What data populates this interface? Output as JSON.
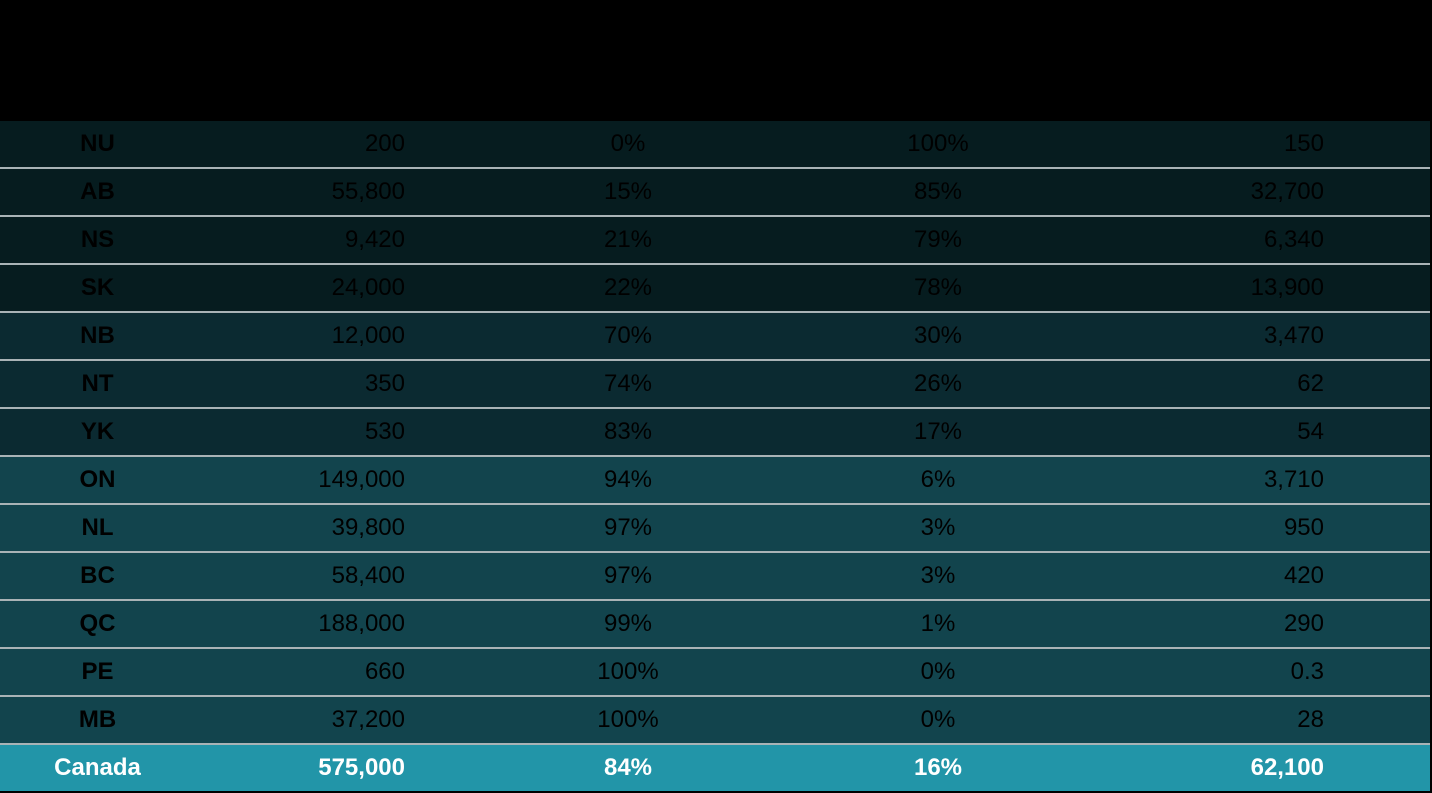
{
  "colors": {
    "background": "#000000",
    "row_divider": "#a9b3b6",
    "band_darkest": "#061c1f",
    "band_dark": "#0b2a31",
    "band_medium": "#12444d",
    "band_total": "#2295a8"
  },
  "chart_data": {
    "type": "table",
    "columns": [
      "",
      "",
      "",
      "",
      ""
    ],
    "rows": [
      {
        "prov": "NU",
        "total": "200",
        "share_a": "0%",
        "share_b": "100%",
        "value": "150",
        "band": "band_darkest"
      },
      {
        "prov": "AB",
        "total": "55,800",
        "share_a": "15%",
        "share_b": "85%",
        "value": "32,700",
        "band": "band_darkest"
      },
      {
        "prov": "NS",
        "total": "9,420",
        "share_a": "21%",
        "share_b": "79%",
        "value": "6,340",
        "band": "band_darkest"
      },
      {
        "prov": "SK",
        "total": "24,000",
        "share_a": "22%",
        "share_b": "78%",
        "value": "13,900",
        "band": "band_darkest"
      },
      {
        "prov": "NB",
        "total": "12,000",
        "share_a": "70%",
        "share_b": "30%",
        "value": "3,470",
        "band": "band_dark"
      },
      {
        "prov": "NT",
        "total": "350",
        "share_a": "74%",
        "share_b": "26%",
        "value": "62",
        "band": "band_dark"
      },
      {
        "prov": "YK",
        "total": "530",
        "share_a": "83%",
        "share_b": "17%",
        "value": "54",
        "band": "band_dark"
      },
      {
        "prov": "ON",
        "total": "149,000",
        "share_a": "94%",
        "share_b": "6%",
        "value": "3,710",
        "band": "band_medium"
      },
      {
        "prov": "NL",
        "total": "39,800",
        "share_a": "97%",
        "share_b": "3%",
        "value": "950",
        "band": "band_medium"
      },
      {
        "prov": "BC",
        "total": "58,400",
        "share_a": "97%",
        "share_b": "3%",
        "value": "420",
        "band": "band_medium"
      },
      {
        "prov": "QC",
        "total": "188,000",
        "share_a": "99%",
        "share_b": "1%",
        "value": "290",
        "band": "band_medium"
      },
      {
        "prov": "PE",
        "total": "660",
        "share_a": "100%",
        "share_b": "0%",
        "value": "0.3",
        "band": "band_medium"
      },
      {
        "prov": "MB",
        "total": "37,200",
        "share_a": "100%",
        "share_b": "0%",
        "value": "28",
        "band": "band_medium"
      }
    ],
    "total_row": {
      "prov": "Canada",
      "total": "575,000",
      "share_a": "84%",
      "share_b": "16%",
      "value": "62,100",
      "band": "band_total"
    }
  }
}
